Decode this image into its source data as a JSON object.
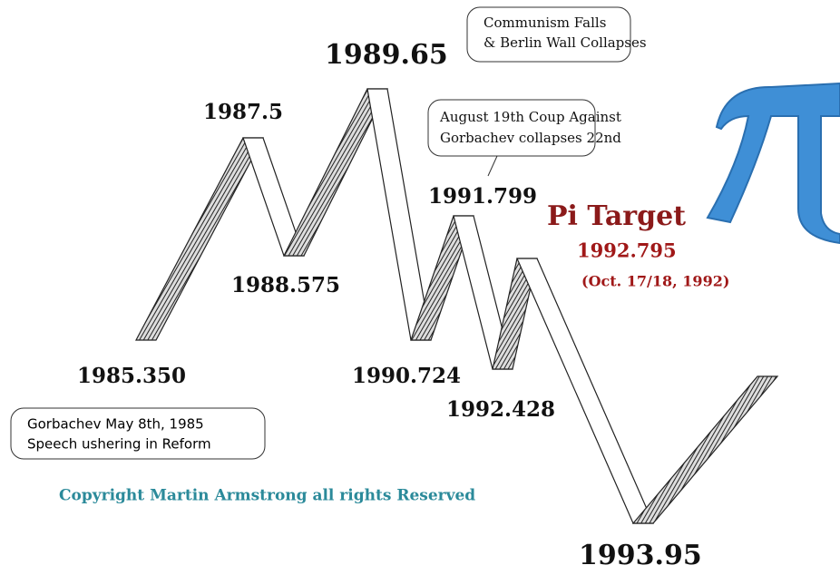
{
  "labels": [
    "1989.65",
    "1987.5",
    "1988.575",
    "1985.350",
    "1990.724",
    "1991.799",
    "1992.428",
    "1993.95"
  ],
  "pi_target": {
    "title": "Pi Target",
    "date": "1992.795",
    "note": "(Oct. 17/18, 1992)"
  },
  "callouts": [
    {
      "lines": [
        "Communism Falls",
        "& Berlin Wall Collapses"
      ]
    },
    {
      "lines": [
        "August 19th Coup Against",
        "Gorbachev collapses 22nd"
      ]
    },
    {
      "lines": [
        "Gorbachev May 8th, 1985",
        "Speech ushering in Reform"
      ]
    }
  ],
  "copyright": "Copyright Martin Armstrong all rights Reserved"
}
